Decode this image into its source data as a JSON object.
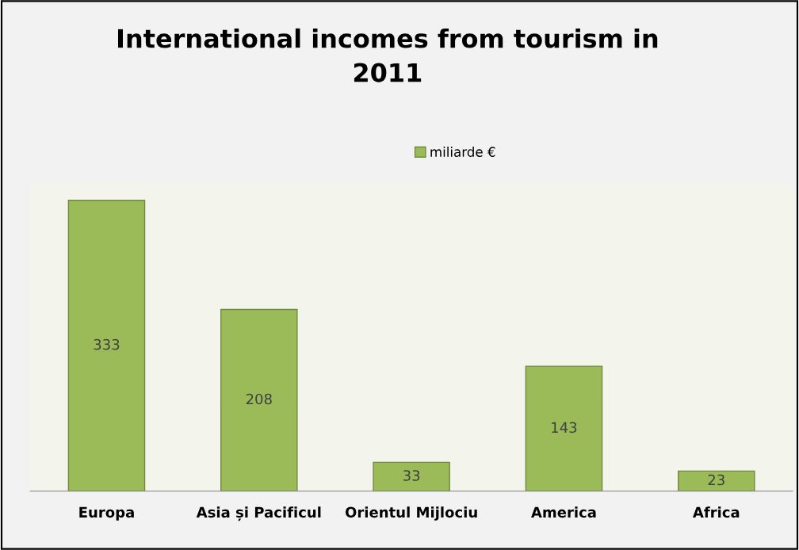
{
  "chart_data": {
    "type": "bar",
    "title": "International incomes from tourism in\n2011",
    "categories": [
      "Europa",
      "Asia și Pacificul",
      "Orientul Mijlociu",
      "America",
      "Africa"
    ],
    "series": [
      {
        "name": "miliarde €",
        "color": "#9bbb59",
        "values": [
          333,
          208,
          33,
          143,
          23
        ]
      }
    ],
    "data_labels": true,
    "legend": "top",
    "grid": false
  }
}
